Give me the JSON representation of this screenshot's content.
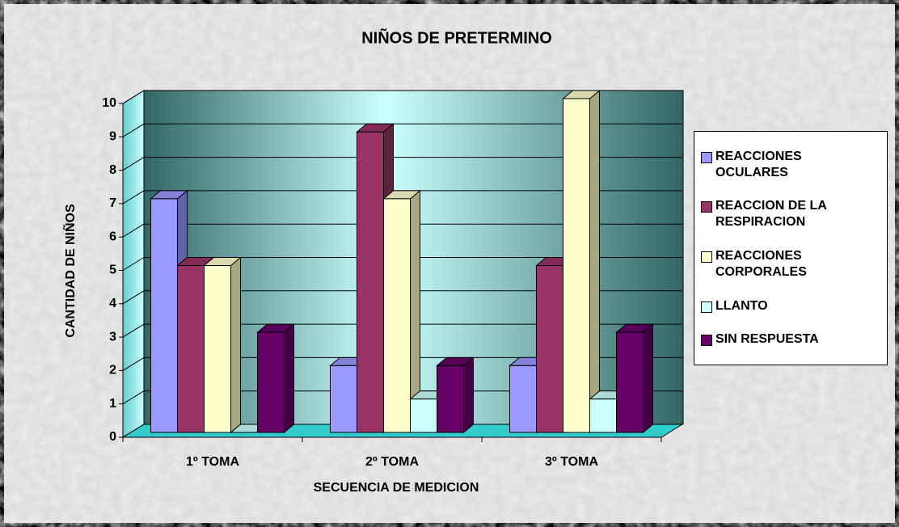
{
  "chart_data": {
    "type": "bar3d",
    "title": "NIÑOS DE PRETERMINO",
    "x_label": "SECUENCIA DE MEDICION",
    "y_label": "CANTIDAD DE NIÑOS",
    "categories": [
      "1º TOMA",
      "2º TOMA",
      "3º TOMA"
    ],
    "series": [
      {
        "name": "REACCIONES OCULARES",
        "color": "#9999ff",
        "values": [
          7,
          2,
          2
        ]
      },
      {
        "name": "REACCION DE LA RESPIRACION",
        "color": "#993366",
        "values": [
          5,
          9,
          5
        ]
      },
      {
        "name": "REACCIONES CORPORALES",
        "color": "#ffffcc",
        "values": [
          5,
          7,
          10
        ]
      },
      {
        "name": "LLANTO",
        "color": "#ccffff",
        "values": [
          0,
          1,
          1
        ]
      },
      {
        "name": "SIN RESPUESTA",
        "color": "#660066",
        "values": [
          3,
          2,
          3
        ]
      }
    ],
    "ylim": [
      0,
      10
    ],
    "yticks": [
      0,
      1,
      2,
      3,
      4,
      5,
      6,
      7,
      8,
      9,
      10
    ],
    "grid": true,
    "legend": "right"
  }
}
